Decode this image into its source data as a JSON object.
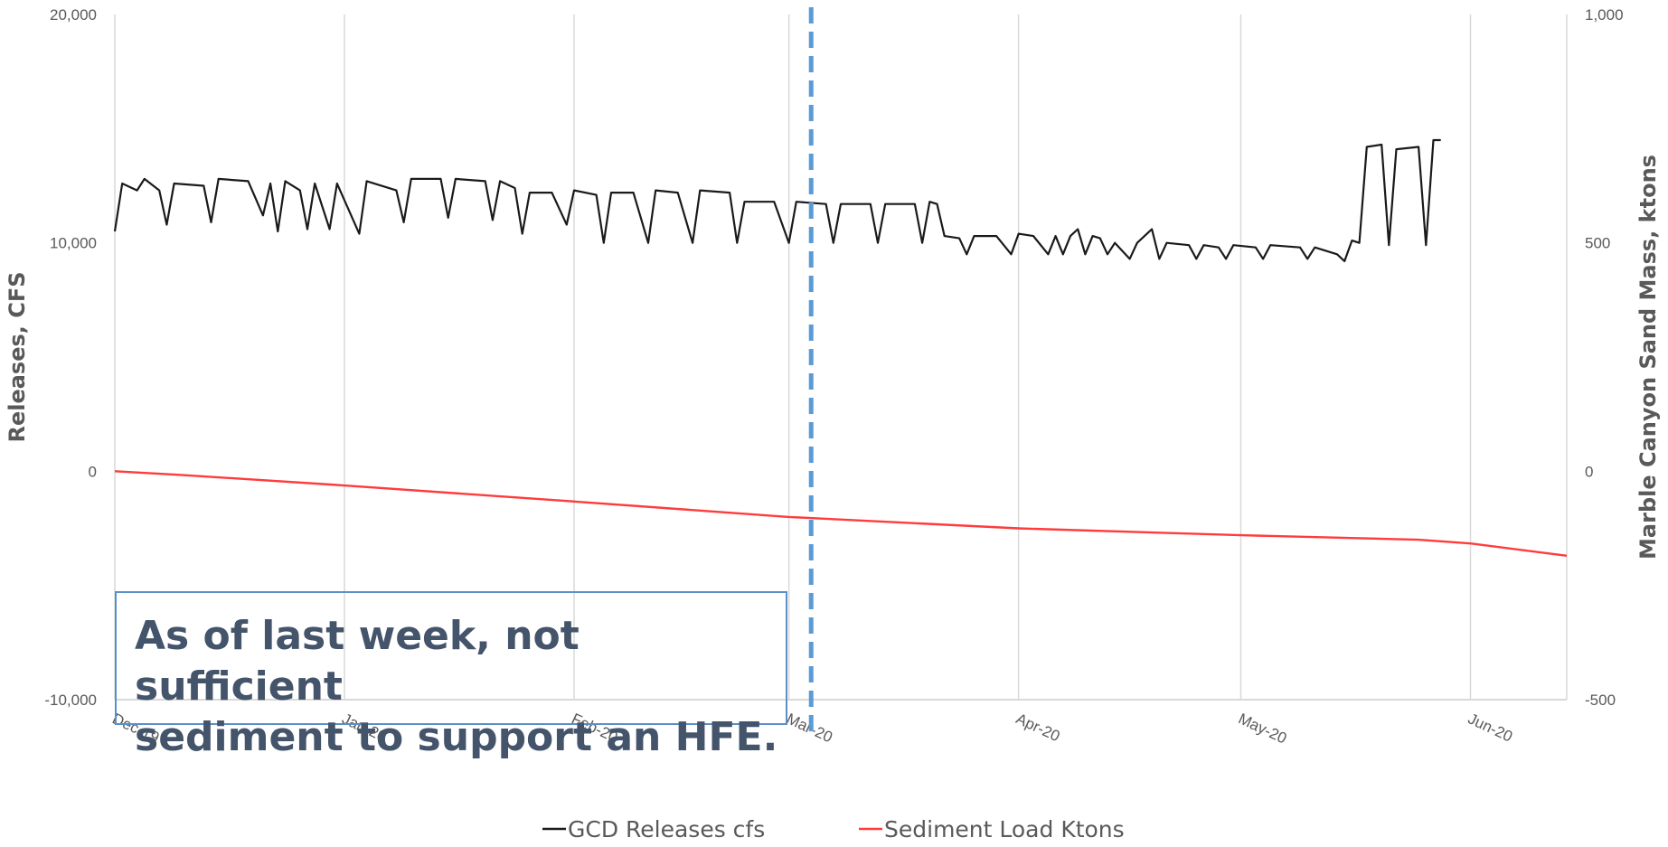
{
  "chart_data": {
    "type": "line",
    "ylabel_left": "Releases, CFS",
    "ylabel_right": "Marble Canyon Sand Mass, ktons",
    "y_left_range": [
      -10000,
      20000
    ],
    "y_left_ticks": [
      "20,000",
      "10,000",
      "0",
      "-10,000"
    ],
    "y_right_range": [
      -500,
      1000
    ],
    "y_right_ticks": [
      "1,000",
      "500",
      "0",
      "-500"
    ],
    "x_range": [
      "2019-12-01",
      "2020-06-14"
    ],
    "x_tick_labels": [
      "Dec-19",
      "Jan-20",
      "Feb-20",
      "Mar-20",
      "Apr-20",
      "May-20",
      "Jun-20"
    ],
    "x_tick_dates": [
      "2019-12-01",
      "2020-01-01",
      "2020-02-01",
      "2020-03-01",
      "2020-04-01",
      "2020-05-01",
      "2020-06-01"
    ],
    "gridlines": "vertical",
    "legend_position": "bottom",
    "marker_line_date": "2020-03-04",
    "marker_line_color": "#5b9bd5",
    "series": [
      {
        "name": "GCD Releases cfs",
        "axis": "left",
        "color": "#1a1a1a",
        "points": [
          [
            "2019-12-01",
            10500
          ],
          [
            "2019-12-02",
            12600
          ],
          [
            "2019-12-04",
            12300
          ],
          [
            "2019-12-05",
            12800
          ],
          [
            "2019-12-07",
            12300
          ],
          [
            "2019-12-08",
            10800
          ],
          [
            "2019-12-09",
            12600
          ],
          [
            "2019-12-13",
            12500
          ],
          [
            "2019-12-14",
            10900
          ],
          [
            "2019-12-15",
            12800
          ],
          [
            "2019-12-19",
            12700
          ],
          [
            "2019-12-21",
            11200
          ],
          [
            "2019-12-22",
            12600
          ],
          [
            "2019-12-23",
            10500
          ],
          [
            "2019-12-24",
            12700
          ],
          [
            "2019-12-26",
            12300
          ],
          [
            "2019-12-27",
            10600
          ],
          [
            "2019-12-28",
            12600
          ],
          [
            "2019-12-30",
            10600
          ],
          [
            "2019-12-31",
            12600
          ],
          [
            "2020-01-03",
            10400
          ],
          [
            "2020-01-04",
            12700
          ],
          [
            "2020-01-08",
            12300
          ],
          [
            "2020-01-09",
            10900
          ],
          [
            "2020-01-10",
            12800
          ],
          [
            "2020-01-14",
            12800
          ],
          [
            "2020-01-15",
            11100
          ],
          [
            "2020-01-16",
            12800
          ],
          [
            "2020-01-20",
            12700
          ],
          [
            "2020-01-21",
            11000
          ],
          [
            "2020-01-22",
            12700
          ],
          [
            "2020-01-24",
            12400
          ],
          [
            "2020-01-25",
            10400
          ],
          [
            "2020-01-26",
            12200
          ],
          [
            "2020-01-29",
            12200
          ],
          [
            "2020-01-31",
            10800
          ],
          [
            "2020-02-01",
            12300
          ],
          [
            "2020-02-04",
            12100
          ],
          [
            "2020-02-05",
            10000
          ],
          [
            "2020-02-06",
            12200
          ],
          [
            "2020-02-09",
            12200
          ],
          [
            "2020-02-11",
            10000
          ],
          [
            "2020-02-12",
            12300
          ],
          [
            "2020-02-15",
            12200
          ],
          [
            "2020-02-17",
            10000
          ],
          [
            "2020-02-18",
            12300
          ],
          [
            "2020-02-22",
            12200
          ],
          [
            "2020-02-23",
            10000
          ],
          [
            "2020-02-24",
            11800
          ],
          [
            "2020-02-28",
            11800
          ],
          [
            "2020-03-01",
            10000
          ],
          [
            "2020-03-02",
            11800
          ],
          [
            "2020-03-06",
            11700
          ],
          [
            "2020-03-07",
            10000
          ],
          [
            "2020-03-08",
            11700
          ],
          [
            "2020-03-12",
            11700
          ],
          [
            "2020-03-13",
            10000
          ],
          [
            "2020-03-14",
            11700
          ],
          [
            "2020-03-18",
            11700
          ],
          [
            "2020-03-19",
            10000
          ],
          [
            "2020-03-20",
            11800
          ],
          [
            "2020-03-21",
            11700
          ],
          [
            "2020-03-22",
            10300
          ],
          [
            "2020-03-24",
            10200
          ],
          [
            "2020-03-25",
            9500
          ],
          [
            "2020-03-26",
            10300
          ],
          [
            "2020-03-29",
            10300
          ],
          [
            "2020-03-31",
            9500
          ],
          [
            "2020-04-01",
            10400
          ],
          [
            "2020-04-03",
            10300
          ],
          [
            "2020-04-05",
            9500
          ],
          [
            "2020-04-06",
            10300
          ],
          [
            "2020-04-07",
            9500
          ],
          [
            "2020-04-08",
            10300
          ],
          [
            "2020-04-09",
            10600
          ],
          [
            "2020-04-10",
            9500
          ],
          [
            "2020-04-11",
            10300
          ],
          [
            "2020-04-12",
            10200
          ],
          [
            "2020-04-13",
            9500
          ],
          [
            "2020-04-14",
            10000
          ],
          [
            "2020-04-16",
            9300
          ],
          [
            "2020-04-17",
            10000
          ],
          [
            "2020-04-19",
            10600
          ],
          [
            "2020-04-20",
            9300
          ],
          [
            "2020-04-21",
            10000
          ],
          [
            "2020-04-24",
            9900
          ],
          [
            "2020-04-25",
            9300
          ],
          [
            "2020-04-26",
            9900
          ],
          [
            "2020-04-28",
            9800
          ],
          [
            "2020-04-29",
            9300
          ],
          [
            "2020-04-30",
            9900
          ],
          [
            "2020-05-03",
            9800
          ],
          [
            "2020-05-04",
            9300
          ],
          [
            "2020-05-05",
            9900
          ],
          [
            "2020-05-09",
            9800
          ],
          [
            "2020-05-10",
            9300
          ],
          [
            "2020-05-11",
            9800
          ],
          [
            "2020-05-14",
            9500
          ],
          [
            "2020-05-15",
            9200
          ],
          [
            "2020-05-16",
            10100
          ],
          [
            "2020-05-17",
            10000
          ],
          [
            "2020-05-18",
            14200
          ],
          [
            "2020-05-20",
            14300
          ],
          [
            "2020-05-21",
            9900
          ],
          [
            "2020-05-22",
            14100
          ],
          [
            "2020-05-25",
            14200
          ],
          [
            "2020-05-26",
            9900
          ],
          [
            "2020-05-27",
            14500
          ],
          [
            "2020-05-28",
            14500
          ]
        ]
      },
      {
        "name": "Sediment Load Ktons",
        "axis": "right",
        "color": "#ff3b3b",
        "points": [
          [
            "2019-12-01",
            0
          ],
          [
            "2019-12-10",
            -8
          ],
          [
            "2019-12-31",
            -30
          ],
          [
            "2020-01-31",
            -65
          ],
          [
            "2020-03-01",
            -100
          ],
          [
            "2020-04-01",
            -125
          ],
          [
            "2020-05-01",
            -140
          ],
          [
            "2020-05-25",
            -150
          ],
          [
            "2020-06-01",
            -158
          ],
          [
            "2020-06-14",
            -185
          ]
        ]
      }
    ]
  },
  "annotation": {
    "text": "As of last week, not sufficient\nsediment to support an HFE.",
    "border_color": "#5b8fc7",
    "text_color": "#44546a"
  }
}
